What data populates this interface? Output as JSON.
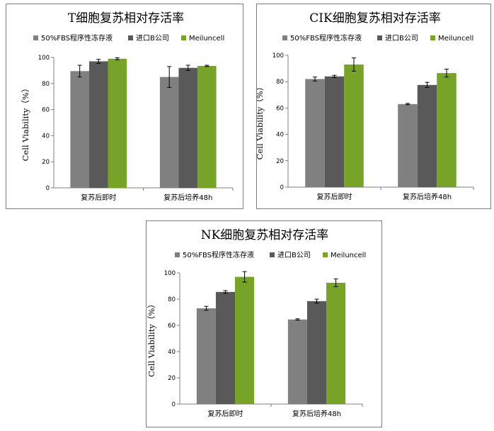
{
  "colors": {
    "series_fbs": "#808080",
    "series_importB": "#595959",
    "series_meiluncell": "#77a328",
    "axis": "#808080",
    "errorbar": "#000000"
  },
  "chart_data": [
    {
      "type": "bar",
      "title": "T细胞复苏相对存活率",
      "ylabel": "Cell Viability（%）",
      "xlabel": "",
      "categories": [
        "复苏后即时",
        "复苏后培养48h"
      ],
      "ylim": [
        0,
        100
      ],
      "yticks": [
        0,
        20,
        40,
        60,
        80,
        100
      ],
      "grid": false,
      "legend": "top",
      "series": [
        {
          "name": "50%FBS程序性冻存液",
          "values": [
            89.5,
            85
          ],
          "errors": [
            4.5,
            8
          ]
        },
        {
          "name": "进口B公司",
          "values": [
            97,
            92
          ],
          "errors": [
            1.5,
            2
          ]
        },
        {
          "name": "Meiluncell",
          "values": [
            99,
            93.5
          ],
          "errors": [
            0.8,
            0.5
          ]
        }
      ]
    },
    {
      "type": "bar",
      "title": "CIK细胞复苏相对存活率",
      "ylabel": "Cell Viability（%）",
      "xlabel": "",
      "categories": [
        "复苏后即时",
        "复苏后培养48h"
      ],
      "ylim": [
        0,
        100
      ],
      "yticks": [
        0,
        20,
        40,
        60,
        80,
        100
      ],
      "grid": false,
      "legend": "top",
      "series": [
        {
          "name": "50%FBS程序性冻存液",
          "values": [
            82,
            63
          ],
          "errors": [
            1.5,
            0.5
          ]
        },
        {
          "name": "进口B公司",
          "values": [
            84,
            77.5
          ],
          "errors": [
            0.8,
            2
          ]
        },
        {
          "name": "Meiluncell",
          "values": [
            93,
            86.5
          ],
          "errors": [
            5,
            3
          ]
        }
      ]
    },
    {
      "type": "bar",
      "title": "NK细胞复苏相对存活率",
      "ylabel": "Cell Viability（%）",
      "xlabel": "",
      "categories": [
        "复苏后即时",
        "复苏后培养48h"
      ],
      "ylim": [
        0,
        100
      ],
      "yticks": [
        0,
        20,
        40,
        60,
        80,
        100
      ],
      "grid": false,
      "legend": "top",
      "series": [
        {
          "name": "50%FBS程序性冻存液",
          "values": [
            73,
            64.5
          ],
          "errors": [
            1.5,
            0.5
          ]
        },
        {
          "name": "进口B公司",
          "values": [
            85.5,
            78.5
          ],
          "errors": [
            1,
            1.5
          ]
        },
        {
          "name": "Meiluncell",
          "values": [
            97,
            92.5
          ],
          "errors": [
            4,
            3
          ]
        }
      ]
    }
  ]
}
